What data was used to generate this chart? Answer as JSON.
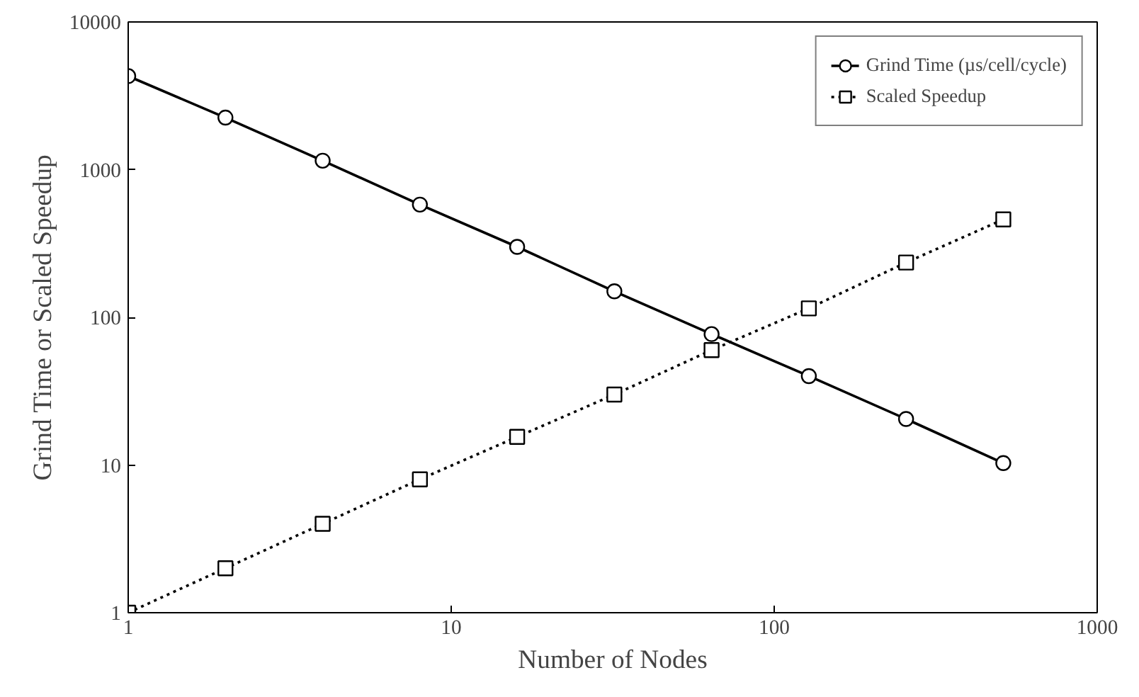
{
  "chart_data": {
    "type": "line",
    "xlabel": "Number of Nodes",
    "ylabel": "Grind Time or Scaled Speedup",
    "log": "xy",
    "xlim": [
      1,
      1000
    ],
    "ylim": [
      1,
      10000
    ],
    "xticks": [
      1,
      10,
      100,
      1000
    ],
    "yticks": [
      1,
      10,
      100,
      1000,
      10000
    ],
    "grid": false,
    "legend": "top right",
    "x": [
      1,
      2,
      4,
      8,
      16,
      32,
      64,
      128,
      256,
      512
    ],
    "series": [
      {
        "name": "Grind Time (µs/cell/cycle)",
        "color": "#000000",
        "marker": "circle",
        "line_style": "solid",
        "values": [
          4300,
          2250,
          1150,
          580,
          300,
          150,
          77,
          40,
          20.5,
          10.3
        ]
      },
      {
        "name": "Scaled Speedup",
        "color": "#000000",
        "marker": "square",
        "line_style": "dotted",
        "values": [
          1,
          2,
          4,
          8,
          15.5,
          30,
          60,
          115,
          235,
          460
        ]
      }
    ]
  }
}
